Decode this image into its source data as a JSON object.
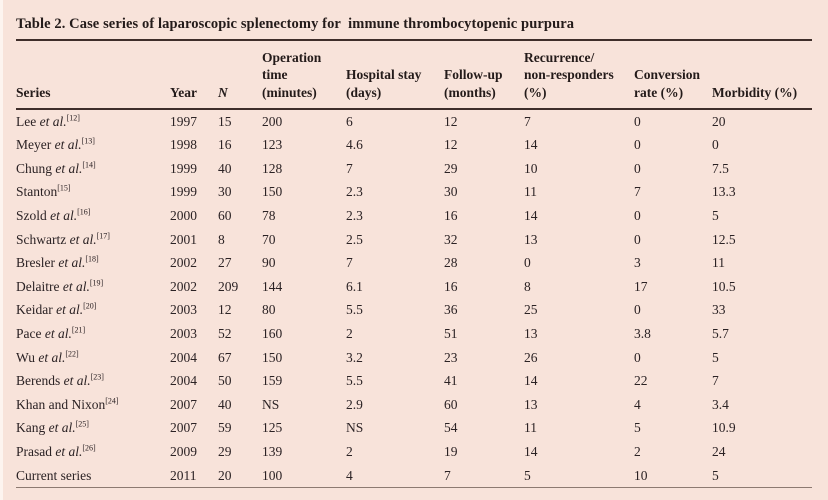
{
  "title": "Table 2. Case series of laparoscopic splenectomy for  immune thrombocytopenic purpura",
  "colors": {
    "background": "#f8e3da",
    "text": "#2b2224",
    "rule": "#3f2e2a",
    "bottom_rule": "#8d7a71"
  },
  "table": {
    "columns": [
      {
        "label": "Series"
      },
      {
        "label": "Year"
      },
      {
        "label": "N"
      },
      {
        "label": "Operation\ntime\n(minutes)"
      },
      {
        "label": "Hospital stay\n(days)"
      },
      {
        "label": "Follow-up\n(months)"
      },
      {
        "label": "Recurrence/\nnon-responders\n(%)"
      },
      {
        "label": "Conversion\nrate (%)"
      },
      {
        "label": "Morbidity (%)"
      }
    ],
    "rows": [
      {
        "author": "Lee",
        "etal": "et al.",
        "ref": "[12]",
        "values": [
          "1997",
          "15",
          "200",
          "6",
          "12",
          "7",
          "0",
          "20"
        ]
      },
      {
        "author": "Meyer",
        "etal": "et al.",
        "ref": "[13]",
        "values": [
          "1998",
          "16",
          "123",
          "4.6",
          "12",
          "14",
          "0",
          "0"
        ]
      },
      {
        "author": "Chung",
        "etal": "et al.",
        "ref": "[14]",
        "values": [
          "1999",
          "40",
          "128",
          "7",
          "29",
          "10",
          "0",
          "7.5"
        ]
      },
      {
        "author": "Stanton",
        "etal": "",
        "ref": "[15]",
        "values": [
          "1999",
          "30",
          "150",
          "2.3",
          "30",
          "11",
          "7",
          "13.3"
        ]
      },
      {
        "author": "Szold",
        "etal": "et al.",
        "ref": "[16]",
        "values": [
          "2000",
          "60",
          "78",
          "2.3",
          "16",
          "14",
          "0",
          "5"
        ]
      },
      {
        "author": "Schwartz",
        "etal": "et al.",
        "ref": "[17]",
        "values": [
          "2001",
          "8",
          "70",
          "2.5",
          "32",
          "13",
          "0",
          "12.5"
        ]
      },
      {
        "author": "Bresler",
        "etal": "et al.",
        "ref": "[18]",
        "values": [
          "2002",
          "27",
          "90",
          "7",
          "28",
          "0",
          "3",
          "11"
        ]
      },
      {
        "author": "Delaitre",
        "etal": "et al.",
        "ref": "[19]",
        "values": [
          "2002",
          "209",
          "144",
          "6.1",
          "16",
          "8",
          "17",
          "10.5"
        ]
      },
      {
        "author": "Keidar",
        "etal": "et al.",
        "ref": "[20]",
        "values": [
          "2003",
          "12",
          "80",
          "5.5",
          "36",
          "25",
          "0",
          "33"
        ]
      },
      {
        "author": "Pace",
        "etal": "et al.",
        "ref": "[21]",
        "values": [
          "2003",
          "52",
          "160",
          "2",
          "51",
          "13",
          "3.8",
          "5.7"
        ]
      },
      {
        "author": "Wu",
        "etal": "et al.",
        "ref": "[22]",
        "values": [
          "2004",
          "67",
          "150",
          "3.2",
          "23",
          "26",
          "0",
          "5"
        ]
      },
      {
        "author": "Berends",
        "etal": "et al.",
        "ref": "[23]",
        "values": [
          "2004",
          "50",
          "159",
          "5.5",
          "41",
          "14",
          "22",
          "7"
        ]
      },
      {
        "author": "Khan and Nixon",
        "etal": "",
        "ref": "[24]",
        "values": [
          "2007",
          "40",
          "NS",
          "2.9",
          "60",
          "13",
          "4",
          "3.4"
        ]
      },
      {
        "author": "Kang",
        "etal": "et al.",
        "ref": "[25]",
        "values": [
          "2007",
          "59",
          "125",
          "NS",
          "54",
          "11",
          "5",
          "10.9"
        ]
      },
      {
        "author": "Prasad",
        "etal": "et al.",
        "ref": "[26]",
        "values": [
          "2009",
          "29",
          "139",
          "2",
          "19",
          "14",
          "2",
          "24"
        ]
      },
      {
        "author": "Current series",
        "etal": "",
        "ref": "",
        "values": [
          "2011",
          "20",
          "100",
          "4",
          "7",
          "5",
          "10",
          "5"
        ]
      }
    ]
  }
}
